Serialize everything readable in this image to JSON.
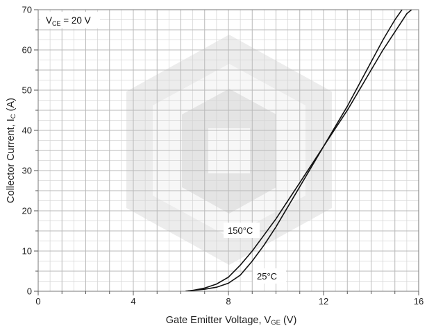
{
  "chart_data": {
    "type": "line",
    "xlabel": "Gate Emitter Voltage, V",
    "xlabel_sub": "GE",
    "xlabel_unit": " (V)",
    "ylabel": "Collector Current, I",
    "ylabel_sub": "C",
    "ylabel_unit": " (A)",
    "xlim": [
      0,
      16
    ],
    "ylim": [
      0,
      70
    ],
    "x_ticks": [
      0,
      4,
      8,
      12,
      16
    ],
    "y_ticks": [
      0,
      10,
      20,
      30,
      40,
      50,
      60,
      70
    ],
    "grid": true,
    "condition_label": {
      "prefix": "V",
      "sub": "CE",
      "suffix": " = 20 V"
    },
    "series": [
      {
        "name": "150°C",
        "x": [
          6.2,
          6.5,
          7.0,
          7.5,
          8.0,
          8.5,
          9.0,
          9.5,
          10.0,
          10.5,
          11.0,
          11.5,
          12.0,
          12.5,
          13.0,
          13.5,
          14.0,
          14.5,
          15.0,
          15.3
        ],
        "y": [
          0,
          0.2,
          0.8,
          1.8,
          3.5,
          6.5,
          10,
          14,
          18,
          22.5,
          27,
          31.5,
          36,
          41,
          46,
          51.5,
          57,
          62.5,
          67.5,
          70
        ]
      },
      {
        "name": "25°C",
        "x": [
          6.2,
          6.5,
          7.0,
          7.5,
          8.0,
          8.5,
          9.0,
          9.5,
          10.0,
          10.5,
          11.0,
          11.5,
          12.0,
          12.5,
          13.0,
          13.5,
          14.0,
          14.5,
          15.0,
          15.5,
          15.7
        ],
        "y": [
          0,
          0.2,
          0.5,
          1,
          2,
          4,
          7.5,
          11.5,
          16,
          21,
          26,
          31,
          36,
          40.5,
          45,
          50,
          55,
          60,
          64.5,
          69,
          70
        ]
      }
    ],
    "annotations": [
      {
        "text": "150°C",
        "series": "150°C"
      },
      {
        "text": "25°C",
        "series": "25°C"
      }
    ]
  }
}
